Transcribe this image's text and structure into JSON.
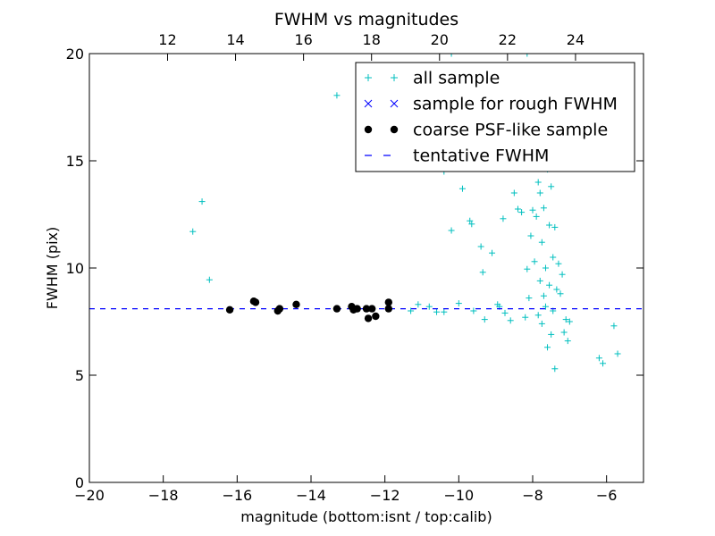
{
  "chart_data": {
    "type": "scatter",
    "title": "FWHM vs magnitudes",
    "xlabel": "magnitude (bottom:isnt / top:calib)",
    "ylabel": "FWHM (pix)",
    "xlim": [
      -20,
      -5
    ],
    "ylim": [
      0,
      20
    ],
    "top_xlim": [
      9.7,
      26.0
    ],
    "x_ticks": [
      -20,
      -18,
      -16,
      -14,
      -12,
      -10,
      -8,
      -6
    ],
    "x_tick_labels": [
      "−20",
      "−18",
      "−16",
      "−14",
      "−12",
      "−10",
      "−8",
      "−6"
    ],
    "y_ticks": [
      0,
      5,
      10,
      15,
      20
    ],
    "y_tick_labels": [
      "0",
      "5",
      "10",
      "15",
      "20"
    ],
    "top_x_ticks": [
      12,
      14,
      16,
      18,
      20,
      22,
      24
    ],
    "top_x_tick_labels": [
      "12",
      "14",
      "16",
      "18",
      "20",
      "22",
      "24"
    ],
    "legend_position": "top-right",
    "grid": false,
    "colors": {
      "all_sample": "#00bfbf",
      "rough_sample": "#0000ff",
      "psf_sample": "#000000",
      "tentative_line": "#0000ff"
    },
    "series": [
      {
        "name": "all sample",
        "marker": "plus",
        "points": [
          [
            -17.2,
            11.7
          ],
          [
            -16.95,
            13.1
          ],
          [
            -16.75,
            9.45
          ],
          [
            -13.3,
            18.05
          ],
          [
            -11.3,
            8.0
          ],
          [
            -11.1,
            8.3
          ],
          [
            -10.8,
            8.2
          ],
          [
            -10.6,
            7.95
          ],
          [
            -10.4,
            7.95
          ],
          [
            -10.2,
            11.75
          ],
          [
            -10.0,
            8.35
          ],
          [
            -9.9,
            13.7
          ],
          [
            -9.7,
            12.2
          ],
          [
            -9.65,
            12.05
          ],
          [
            -9.6,
            8.0
          ],
          [
            -9.4,
            11.0
          ],
          [
            -9.35,
            9.8
          ],
          [
            -9.3,
            7.6
          ],
          [
            -9.1,
            10.7
          ],
          [
            -8.95,
            8.3
          ],
          [
            -8.9,
            8.2
          ],
          [
            -8.8,
            12.3
          ],
          [
            -8.75,
            7.9
          ],
          [
            -8.6,
            7.55
          ],
          [
            -8.5,
            13.5
          ],
          [
            -8.4,
            12.75
          ],
          [
            -8.3,
            12.6
          ],
          [
            -8.2,
            7.7
          ],
          [
            -8.15,
            9.95
          ],
          [
            -8.1,
            8.6
          ],
          [
            -8.05,
            11.5
          ],
          [
            -8.0,
            12.7
          ],
          [
            -7.95,
            10.3
          ],
          [
            -7.9,
            12.4
          ],
          [
            -7.85,
            14.0
          ],
          [
            -7.8,
            13.5
          ],
          [
            -7.75,
            11.2
          ],
          [
            -7.7,
            12.8
          ],
          [
            -7.65,
            10.0
          ],
          [
            -7.6,
            14.6
          ],
          [
            -7.55,
            12.0
          ],
          [
            -7.5,
            13.8
          ],
          [
            -7.45,
            10.5
          ],
          [
            -7.4,
            11.9
          ],
          [
            -7.35,
            9.0
          ],
          [
            -7.3,
            10.2
          ],
          [
            -7.25,
            8.8
          ],
          [
            -7.2,
            9.7
          ],
          [
            -7.15,
            7.0
          ],
          [
            -7.1,
            7.6
          ],
          [
            -7.05,
            6.6
          ],
          [
            -7.0,
            7.5
          ],
          [
            -7.6,
            6.3
          ],
          [
            -7.5,
            6.9
          ],
          [
            -7.4,
            5.3
          ],
          [
            -7.8,
            9.4
          ],
          [
            -7.7,
            8.7
          ],
          [
            -7.55,
            9.2
          ],
          [
            -7.45,
            8.0
          ],
          [
            -7.65,
            8.2
          ],
          [
            -7.85,
            7.8
          ],
          [
            -7.75,
            7.4
          ],
          [
            -6.2,
            5.8
          ],
          [
            -6.1,
            5.55
          ],
          [
            -5.8,
            7.3
          ],
          [
            -5.7,
            6.0
          ],
          [
            -8.15,
            20.0
          ],
          [
            -10.4,
            14.5
          ],
          [
            -10.2,
            20.0
          ]
        ]
      },
      {
        "name": "sample for rough FWHM",
        "marker": "x",
        "points": []
      },
      {
        "name": "coarse PSF-like sample",
        "marker": "circle",
        "points": [
          [
            -16.2,
            8.05
          ],
          [
            -15.55,
            8.45
          ],
          [
            -15.5,
            8.4
          ],
          [
            -14.9,
            8.0
          ],
          [
            -14.85,
            8.1
          ],
          [
            -14.4,
            8.3
          ],
          [
            -13.3,
            8.1
          ],
          [
            -12.9,
            8.2
          ],
          [
            -12.85,
            8.05
          ],
          [
            -12.75,
            8.1
          ],
          [
            -12.5,
            8.1
          ],
          [
            -12.45,
            7.65
          ],
          [
            -12.35,
            8.1
          ],
          [
            -12.25,
            7.75
          ],
          [
            -11.9,
            8.4
          ],
          [
            -11.9,
            8.1
          ]
        ]
      },
      {
        "name": "tentative FWHM",
        "marker": "dashed-line",
        "y": 8.1
      }
    ]
  }
}
